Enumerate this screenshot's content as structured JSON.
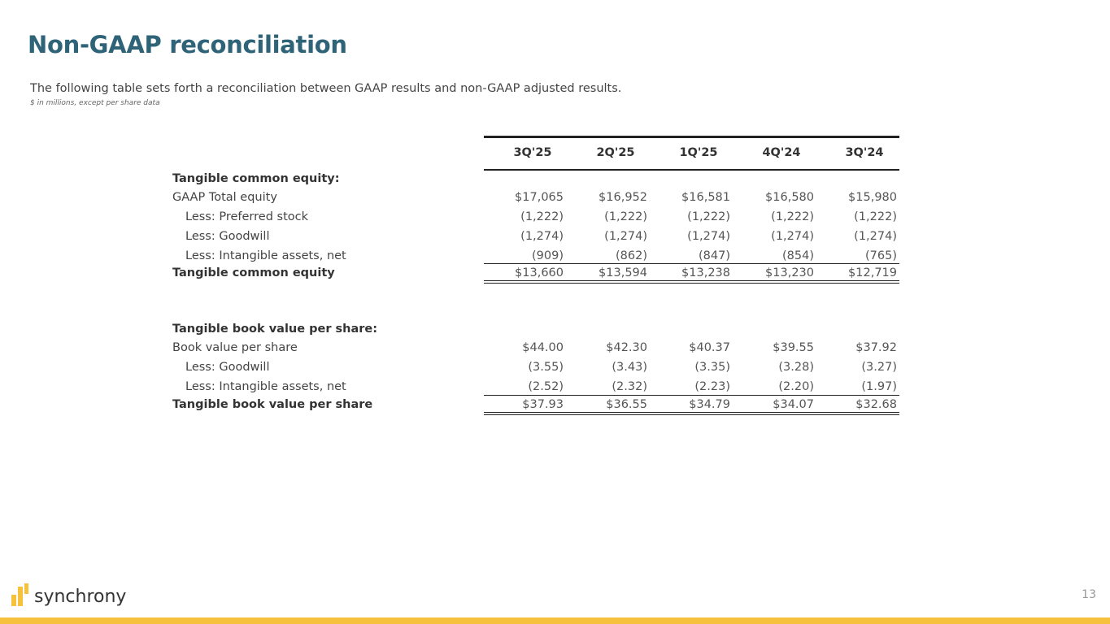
{
  "title": "Non-GAAP reconciliation",
  "subtitle": "The following table sets forth a reconciliation between GAAP results and non-GAAP adjusted results.",
  "note": "$ in millions, except per share data",
  "columns": [
    "3Q'25",
    "2Q'25",
    "1Q'25",
    "4Q'24",
    "3Q'24"
  ],
  "section1": {
    "heading": "Tangible common equity:",
    "rows": [
      {
        "label": "GAAP Total equity",
        "values": [
          "$17,065",
          "$16,952",
          "$16,581",
          "$16,580",
          "$15,980"
        ]
      },
      {
        "label": "Less: Preferred stock",
        "values": [
          "(1,222)",
          "(1,222)",
          "(1,222)",
          "(1,222)",
          "(1,222)"
        ]
      },
      {
        "label": "Less: Goodwill",
        "values": [
          "(1,274)",
          "(1,274)",
          "(1,274)",
          "(1,274)",
          "(1,274)"
        ]
      },
      {
        "label": "Less: Intangible assets, net",
        "values": [
          "(909)",
          "(862)",
          "(847)",
          "(854)",
          "(765)"
        ]
      },
      {
        "label": "Tangible common equity",
        "values": [
          "$13,660",
          "$13,594",
          "$13,238",
          "$13,230",
          "$12,719"
        ]
      }
    ]
  },
  "section2": {
    "heading": "Tangible book value per share:",
    "rows": [
      {
        "label": "Book value per share",
        "values": [
          "$44.00",
          "$42.30",
          "$40.37",
          "$39.55",
          "$37.92"
        ]
      },
      {
        "label": "Less: Goodwill",
        "values": [
          "(3.55)",
          "(3.43)",
          "(3.35)",
          "(3.28)",
          "(3.27)"
        ]
      },
      {
        "label": "Less: Intangible assets, net",
        "values": [
          "(2.52)",
          "(2.32)",
          "(2.23)",
          "(2.20)",
          "(1.97)"
        ]
      },
      {
        "label": "Tangible book value per share",
        "values": [
          "$37.93",
          "$36.55",
          "$34.79",
          "$34.07",
          "$32.68"
        ]
      }
    ]
  },
  "logo": "synchrony",
  "page_number": "13",
  "colors": {
    "title": "#2f6478",
    "brand_yellow": "#f6c23e"
  }
}
